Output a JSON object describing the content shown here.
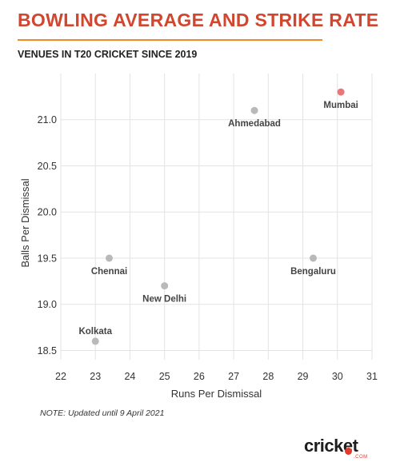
{
  "header": {
    "title": "BOWLING AVERAGE AND STRIKE RATE",
    "subtitle": "VENUES IN T20 CRICKET SINCE 2019"
  },
  "footer": {
    "note": "NOTE: Updated until 9 April 2021",
    "logo_text": "cricket",
    "logo_domain": ".COM"
  },
  "colors": {
    "title": "#d1462f",
    "rule": "#f08a24",
    "point": "#b9b9b9",
    "highlight": "#e8777a",
    "grid": "#e3e3e3"
  },
  "chart_data": {
    "type": "scatter",
    "xlabel": "Runs Per Dismissal",
    "ylabel": "Balls Per Dismissal",
    "xlim": [
      22,
      31
    ],
    "ylim": [
      18.4,
      21.5
    ],
    "xticks": [
      "22",
      "23",
      "24",
      "25",
      "26",
      "27",
      "28",
      "29",
      "30",
      "31"
    ],
    "yticks": [
      "18.5",
      "19.0",
      "19.5",
      "20.0",
      "20.5",
      "21.0"
    ],
    "grid": true,
    "points": [
      {
        "label": "Mumbai",
        "x": 30.1,
        "y": 21.3,
        "highlight": true
      },
      {
        "label": "Ahmedabad",
        "x": 27.6,
        "y": 21.1,
        "highlight": false
      },
      {
        "label": "Chennai",
        "x": 23.4,
        "y": 19.5,
        "highlight": false
      },
      {
        "label": "Bengaluru",
        "x": 29.3,
        "y": 19.5,
        "highlight": false
      },
      {
        "label": "New Delhi",
        "x": 25.0,
        "y": 19.2,
        "highlight": false
      },
      {
        "label": "Kolkata",
        "x": 23.0,
        "y": 18.6,
        "highlight": false
      }
    ]
  }
}
